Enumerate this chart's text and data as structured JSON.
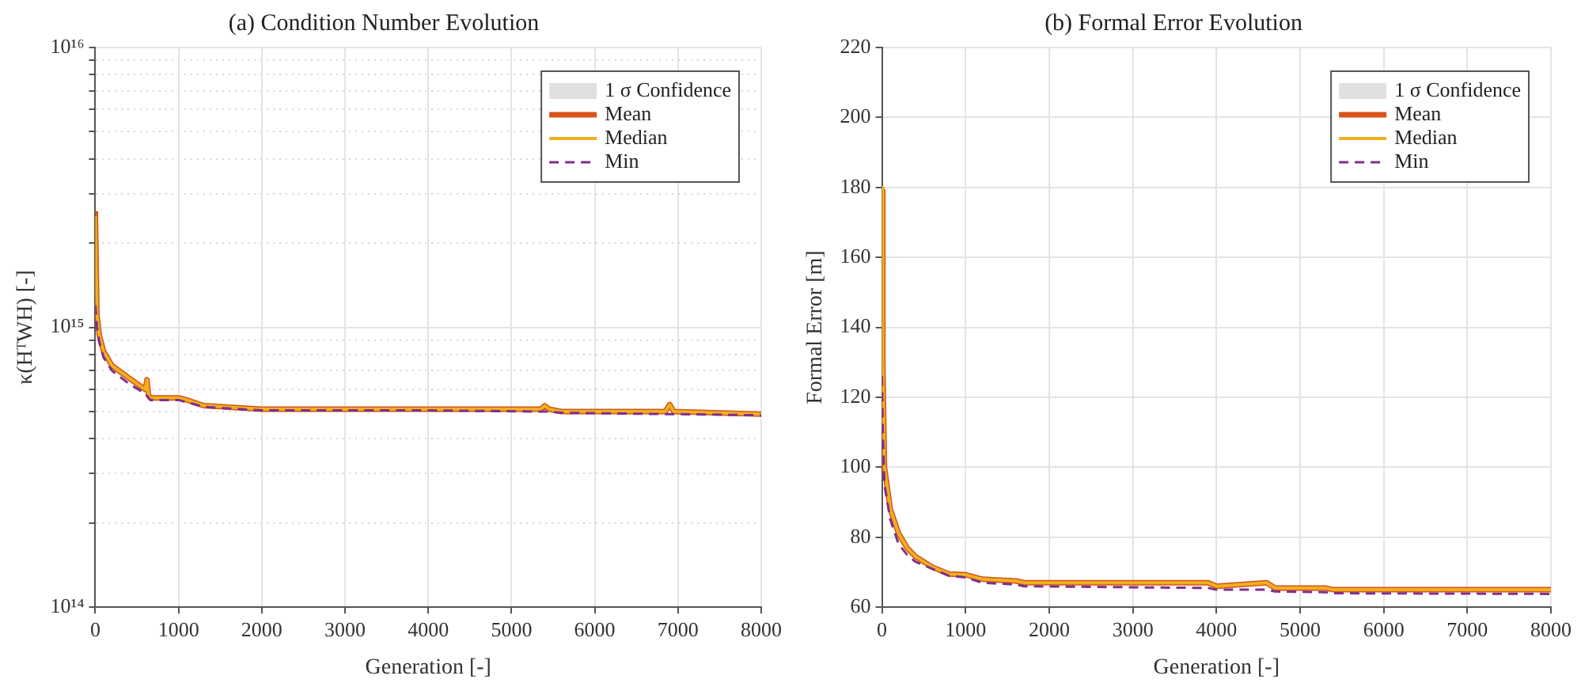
{
  "chart_data": [
    {
      "type": "line",
      "title": "(a) Condition Number Evolution",
      "xlabel": "Generation [-]",
      "ylabel": "κ(HᵀWH) [-]",
      "log": "y",
      "grid": true,
      "legend": "top right",
      "x": [
        0,
        20,
        50,
        100,
        200,
        400,
        600,
        620,
        640,
        660,
        1000,
        1100,
        1300,
        2000,
        4000,
        5350,
        5400,
        5450,
        5600,
        6850,
        6900,
        6950,
        8000
      ],
      "xlim": [
        0,
        8000
      ],
      "xticks": [
        0,
        1000,
        2000,
        3000,
        4000,
        5000,
        6000,
        7000,
        8000
      ],
      "ylim": [
        100000000000000.0,
        1e+16
      ],
      "yticks": [
        {
          "value": 100000000000000.0,
          "label": "10¹⁴"
        },
        {
          "value": 200000000000000.0,
          "label": null
        },
        {
          "value": 300000000000000.0,
          "label": null
        },
        {
          "value": 400000000000000.0,
          "label": null
        },
        {
          "value": 500000000000000.0,
          "label": null
        },
        {
          "value": 600000000000000.0,
          "label": null
        },
        {
          "value": 700000000000000.0,
          "label": null
        },
        {
          "value": 800000000000000.0,
          "label": null
        },
        {
          "value": 900000000000000.0,
          "label": null
        },
        {
          "value": 1000000000000000.0,
          "label": "10¹⁵"
        },
        {
          "value": 2000000000000000.0,
          "label": null
        },
        {
          "value": 3000000000000000.0,
          "label": null
        },
        {
          "value": 4000000000000000.0,
          "label": null
        },
        {
          "value": 5000000000000000.0,
          "label": null
        },
        {
          "value": 6000000000000000.0,
          "label": null
        },
        {
          "value": 7000000000000000.0,
          "label": null
        },
        {
          "value": 8000000000000000.0,
          "label": null
        },
        {
          "value": 9000000000000000.0,
          "label": null
        },
        {
          "value": 1e+16,
          "label": "10¹⁶"
        }
      ],
      "series": [
        {
          "name": "1 σ Confidence",
          "type": "area",
          "color": "#e0e0e0",
          "values": [
            null,
            null,
            null,
            null,
            null,
            null,
            null,
            null,
            null,
            null,
            null,
            null,
            null,
            null,
            null,
            null,
            null,
            null,
            null,
            null,
            null,
            null,
            null
          ]
        },
        {
          "name": "Mean",
          "color": "#d95319",
          "values": [
            2600000000000000.0,
            1100000000000000.0,
            930000000000000.0,
            820000000000000.0,
            730000000000000.0,
            660000000000000.0,
            600000000000000.0,
            650000000000000.0,
            570000000000000.0,
            560000000000000.0,
            560000000000000.0,
            550000000000000.0,
            525000000000000.0,
            510000000000000.0,
            510000000000000.0,
            510000000000000.0,
            525000000000000.0,
            510000000000000.0,
            500000000000000.0,
            500000000000000.0,
            530000000000000.0,
            500000000000000.0,
            490000000000000.0
          ]
        },
        {
          "name": "Median",
          "color": "#edb120",
          "values": [
            2500000000000000.0,
            1100000000000000.0,
            930000000000000.0,
            820000000000000.0,
            730000000000000.0,
            660000000000000.0,
            600000000000000.0,
            650000000000000.0,
            570000000000000.0,
            560000000000000.0,
            560000000000000.0,
            550000000000000.0,
            525000000000000.0,
            510000000000000.0,
            510000000000000.0,
            510000000000000.0,
            525000000000000.0,
            510000000000000.0,
            500000000000000.0,
            500000000000000.0,
            530000000000000.0,
            500000000000000.0,
            490000000000000.0
          ]
        },
        {
          "name": "Min",
          "color": "#7e2f8e",
          "line_style": "dashed",
          "values": [
            1200000000000000.0,
            1000000000000000.0,
            880000000000000.0,
            780000000000000.0,
            700000000000000.0,
            630000000000000.0,
            580000000000000.0,
            570000000000000.0,
            560000000000000.0,
            550000000000000.0,
            550000000000000.0,
            540000000000000.0,
            520000000000000.0,
            505000000000000.0,
            505000000000000.0,
            500000000000000.0,
            500000000000000.0,
            500000000000000.0,
            495000000000000.0,
            490000000000000.0,
            490000000000000.0,
            490000000000000.0,
            485000000000000.0
          ]
        }
      ]
    },
    {
      "type": "line",
      "title": "(b) Formal Error Evolution",
      "xlabel": "Generation [-]",
      "ylabel": "Formal Error [m]",
      "grid": true,
      "legend": "top right",
      "x": [
        0,
        10,
        30,
        100,
        200,
        300,
        400,
        600,
        800,
        1000,
        1200,
        1600,
        1700,
        3900,
        4000,
        4600,
        4700,
        5300,
        5400,
        8000
      ],
      "xlim": [
        0,
        8000
      ],
      "xticks": [
        0,
        1000,
        2000,
        3000,
        4000,
        5000,
        6000,
        7000,
        8000
      ],
      "ylim": [
        60,
        220
      ],
      "yticks": [
        60,
        80,
        100,
        120,
        140,
        160,
        180,
        200,
        220
      ],
      "series": [
        {
          "name": "1 σ Confidence",
          "type": "area",
          "color": "#e0e0e0",
          "values": [
            null,
            null,
            null,
            null,
            null,
            null,
            null,
            null,
            null,
            null,
            null,
            null,
            null,
            null,
            null,
            null,
            null,
            null,
            null,
            null
          ]
        },
        {
          "name": "Mean",
          "color": "#d95319",
          "values": [
            179,
            130,
            100,
            88,
            81,
            77,
            74.5,
            71.5,
            69.5,
            69.3,
            68,
            67.5,
            67,
            67,
            66,
            67,
            65.5,
            65.5,
            65,
            65
          ]
        },
        {
          "name": "Median",
          "color": "#edb120",
          "values": [
            180,
            130,
            100,
            88,
            81,
            77,
            74.5,
            71.5,
            69.5,
            69.3,
            68,
            67.5,
            67,
            67,
            66,
            67,
            65.5,
            65.5,
            65,
            65
          ]
        },
        {
          "name": "Min",
          "color": "#7e2f8e",
          "line_style": "dashed",
          "values": [
            126,
            110,
            95,
            85,
            78,
            75,
            73,
            71,
            69,
            68.5,
            67,
            66.5,
            66,
            65.5,
            65,
            65,
            64.5,
            64.3,
            64,
            63.8
          ]
        }
      ]
    }
  ]
}
